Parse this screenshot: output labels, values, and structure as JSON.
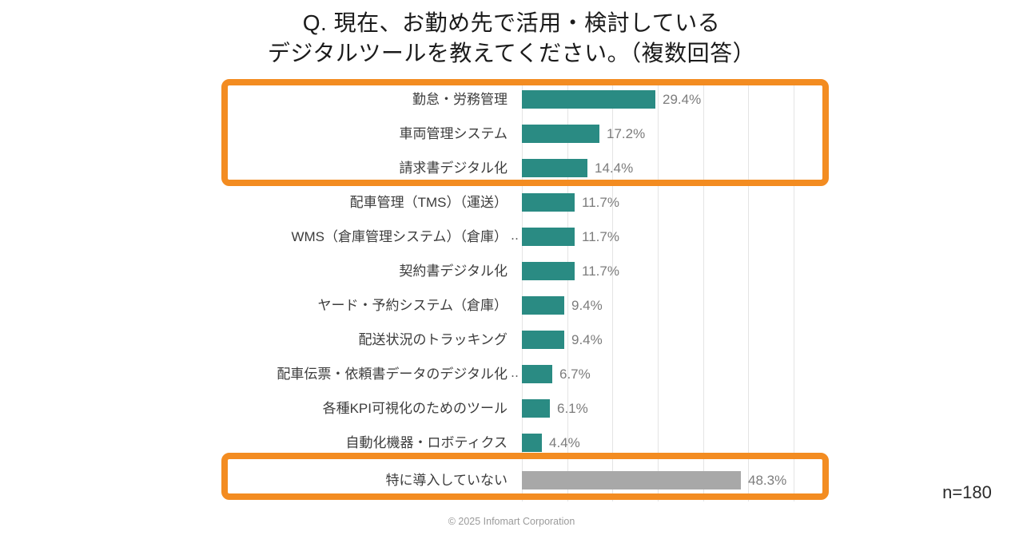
{
  "title": {
    "line1": "Q. 現在、お勤め先で活用・検討している",
    "line2": "デジタルツールを教えてください。（複数回答）"
  },
  "chart_data": {
    "type": "bar",
    "orientation": "horizontal",
    "title": "Q. 現在、お勤め先で活用・検討しているデジタルツールを教えてください。（複数回答）",
    "xlabel": "",
    "ylabel": "",
    "xlim": [
      0,
      60
    ],
    "gridline_step_pct": 10,
    "grid": true,
    "categories": [
      "勤怠・労務管理",
      "車両管理システム",
      "請求書デジタル化",
      "配車管理（TMS）（運送）",
      "WMS（倉庫管理システム）（倉庫）",
      "契約書デジタル化",
      "ヤード・予約システム（倉庫）",
      "配送状況のトラッキング",
      "配車伝票・依頼書データのデジタル化",
      "各種KPI可視化のためのツール",
      "自動化機器・ロボティクス",
      "特に導入していない"
    ],
    "values": [
      29.4,
      17.2,
      14.4,
      11.7,
      11.7,
      11.7,
      9.4,
      9.4,
      6.7,
      6.1,
      4.4,
      48.3
    ],
    "value_labels": [
      "29.4%",
      "17.2%",
      "14.4%",
      "11.7%",
      "11.7%",
      "11.7%",
      "9.4%",
      "9.4%",
      "6.7%",
      "6.1%",
      "4.4%",
      "48.3%"
    ],
    "truncated": [
      false,
      false,
      false,
      false,
      true,
      false,
      false,
      false,
      true,
      false,
      false,
      false
    ],
    "truncation_marker": "‥",
    "colors": {
      "bar_default": "#2a8b83",
      "bar_none_option": "#a8a8a8",
      "highlight_border": "#f38c21",
      "gridline": "#e4e4e4",
      "category_text": "#3c3c3c",
      "value_text": "#7c7c7c"
    },
    "highlighted_rows": [
      0,
      1,
      2,
      11
    ],
    "legend": null
  },
  "footer": {
    "sample_size": "n=180",
    "copyright": "© 2025 Infomart Corporation"
  }
}
